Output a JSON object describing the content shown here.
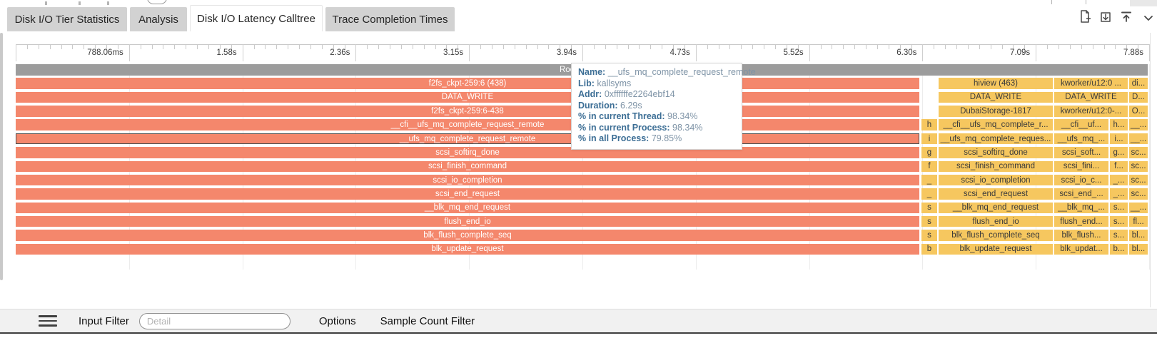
{
  "tabs": [
    {
      "label": "Disk I/O Tier Statistics",
      "active": false
    },
    {
      "label": "Analysis",
      "active": false
    },
    {
      "label": "Disk I/O Latency Calltree",
      "active": true
    },
    {
      "label": "Trace Completion Times",
      "active": false
    }
  ],
  "toolbar_icons": [
    "new-file-icon",
    "download-icon",
    "collapse-to-top-icon",
    "chevron-down-icon"
  ],
  "ruler": {
    "labels": [
      "788.06ms",
      "1.58s",
      "2.36s",
      "3.15s",
      "3.94s",
      "4.73s",
      "5.52s",
      "6.30s",
      "7.09s",
      "7.88s"
    ]
  },
  "flame": {
    "root_label": "Root : 7.88s",
    "rows": [
      {
        "label": "f2fs_ckpt-259:6 (438)",
        "letter": null,
        "wide_medium": true,
        "main": "hiview (463)",
        "medium": "kworker/u12:0 ...",
        "small": null,
        "last": "di...",
        "selected": false
      },
      {
        "label": "DATA_WRITE",
        "letter": null,
        "wide_medium": true,
        "main": "DATA_WRITE",
        "medium": "DATA_WRITE",
        "small": null,
        "last": "D...",
        "selected": false
      },
      {
        "label": "f2fs_ckpt-259:6-438",
        "letter": null,
        "wide_medium": true,
        "main": "DubaiStorage-1817",
        "medium": "kworker/u12:0-...",
        "small": null,
        "last": "O...",
        "selected": false
      },
      {
        "label": "__cfi__ufs_mq_complete_request_remote",
        "letter": "h",
        "wide_medium": false,
        "main": "__cfi__ufs_mq_complete_r...",
        "medium": "__cfi__uf...",
        "small": "h...",
        "last": "__...",
        "selected": false
      },
      {
        "label": "__ufs_mq_complete_request_remote",
        "letter": "i",
        "wide_medium": false,
        "main": "__ufs_mq_complete_reques...",
        "medium": "__ufs_mq_...",
        "small": "i...",
        "last": "__...",
        "selected": true
      },
      {
        "label": "scsi_softirq_done",
        "letter": "g",
        "wide_medium": false,
        "main": "scsi_softirq_done",
        "medium": "scsi_soft...",
        "small": "g...",
        "last": "sc...",
        "selected": false
      },
      {
        "label": "scsi_finish_command",
        "letter": "f",
        "wide_medium": false,
        "main": "scsi_finish_command",
        "medium": "scsi_fini...",
        "small": "f...",
        "last": "sc...",
        "selected": false
      },
      {
        "label": "scsi_io_completion",
        "letter": "_",
        "wide_medium": false,
        "main": "scsi_io_completion",
        "medium": "scsi_io_c...",
        "small": "_...",
        "last": "sc...",
        "selected": false
      },
      {
        "label": "scsi_end_request",
        "letter": "_",
        "wide_medium": false,
        "main": "scsi_end_request",
        "medium": "scsi_end_...",
        "small": "_...",
        "last": "sc...",
        "selected": false
      },
      {
        "label": "__blk_mq_end_request",
        "letter": "s",
        "wide_medium": false,
        "main": "__blk_mq_end_request",
        "medium": "__blk_mq_...",
        "small": "s...",
        "last": "__...",
        "selected": false
      },
      {
        "label": "flush_end_io",
        "letter": "s",
        "wide_medium": false,
        "main": "flush_end_io",
        "medium": "flush_end...",
        "small": "s...",
        "last": "fl...",
        "selected": false
      },
      {
        "label": "blk_flush_complete_seq",
        "letter": "s",
        "wide_medium": false,
        "main": "blk_flush_complete_seq",
        "medium": "blk_flush...",
        "small": "s...",
        "last": "bl...",
        "selected": false
      },
      {
        "label": "blk_update_request",
        "letter": "b",
        "wide_medium": false,
        "main": "blk_update_request",
        "medium": "blk_updat...",
        "small": "b...",
        "last": "bl...",
        "selected": false
      }
    ]
  },
  "tooltip": {
    "lines": [
      {
        "label": "Name:",
        "value": "__ufs_mq_complete_request_remote"
      },
      {
        "label": "Lib:",
        "value": "kallsyms"
      },
      {
        "label": "Addr:",
        "value": "0xffffffe2264ebf14"
      },
      {
        "label": "Duration:",
        "value": "6.29s"
      },
      {
        "label": "% in current Thread:",
        "value": "98.34%"
      },
      {
        "label": "% in current Process:",
        "value": "98.34%"
      },
      {
        "label": "% in all Process:",
        "value": "79.85%"
      }
    ]
  },
  "filter_bar": {
    "input_filter_label": "Input Filter",
    "input_placeholder": "Detail",
    "input_value": "",
    "options_label": "Options",
    "sample_count_filter_label": "Sample Count Filter"
  },
  "colors": {
    "salmon": "#f4876c",
    "yellow": "#f6c75f",
    "root_gray": "#9c9c9c",
    "tooltip_label": "#3c6e95",
    "tooltip_value": "#7e93a6"
  }
}
